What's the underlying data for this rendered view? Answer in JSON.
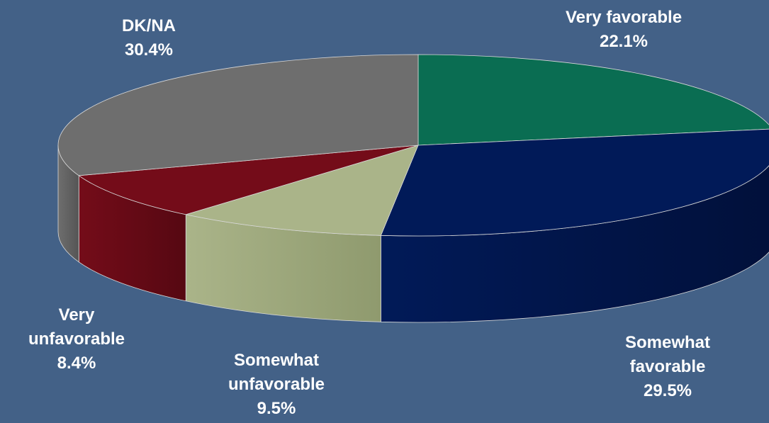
{
  "chart_data": {
    "type": "pie",
    "title": "",
    "slices": [
      {
        "label": "Very favorable",
        "value": 22.1,
        "value_label": "22.1%",
        "color": "#0a6d52",
        "side_color": "#074d3a"
      },
      {
        "label": "Somewhat favorable",
        "value": 29.5,
        "value_label": "29.5%",
        "color": "#011a58",
        "side_color": "#01103a"
      },
      {
        "label": "Somewhat unfavorable",
        "value": 9.5,
        "value_label": "9.5%",
        "color": "#aab489",
        "side_color": "#8f9a6e"
      },
      {
        "label": "Very unfavorable",
        "value": 8.4,
        "value_label": "8.4%",
        "color": "#740c19",
        "side_color": "#560812"
      },
      {
        "label": "DK/NA",
        "value": 30.4,
        "value_label": "30.4%",
        "color": "#6e6e6e",
        "side_color": "#555555"
      }
    ],
    "label_text": {
      "Very favorable": [
        "Very favorable",
        "22.1%"
      ],
      "Somewhat favorable": [
        "Somewhat",
        "favorable",
        "29.5%"
      ],
      "Somewhat unfavorable": [
        "Somewhat",
        "unfavorable",
        "9.5%"
      ],
      "Very unfavorable": [
        "Very",
        "unfavorable",
        "8.4%"
      ],
      "DK/NA": [
        "DK/NA",
        "30.4%"
      ]
    },
    "style": "3d-pie",
    "legend": "none",
    "start": "top, clockwise"
  }
}
